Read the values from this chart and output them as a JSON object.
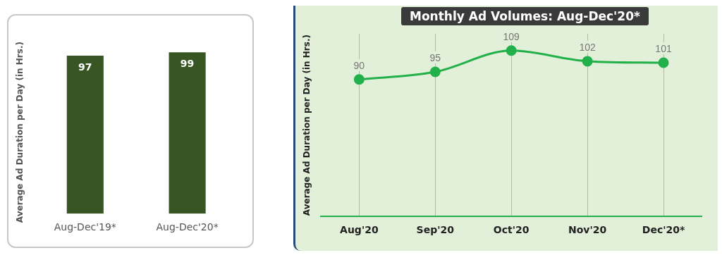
{
  "chart_data": [
    {
      "type": "bar",
      "ylabel": "Average Ad Duration per Day (in Hrs.)",
      "categories": [
        "Aug-Dec'19*",
        "Aug-Dec'20*"
      ],
      "values": [
        97,
        99
      ],
      "color": "#375623",
      "data_labels": true,
      "grid": false,
      "legend": false
    },
    {
      "type": "line",
      "title": "Monthly Ad Volumes: Aug-Dec'20*",
      "ylabel": "Average Ad Duration per Day (in Hrs.)",
      "categories": [
        "Aug'20",
        "Sep'20",
        "Oct'20",
        "Nov'20",
        "Dec'20*"
      ],
      "values": [
        90,
        95,
        109,
        102,
        101
      ],
      "color": "#22b04a",
      "data_labels": true,
      "grid": "x",
      "marker": "circle",
      "legend": false
    }
  ]
}
